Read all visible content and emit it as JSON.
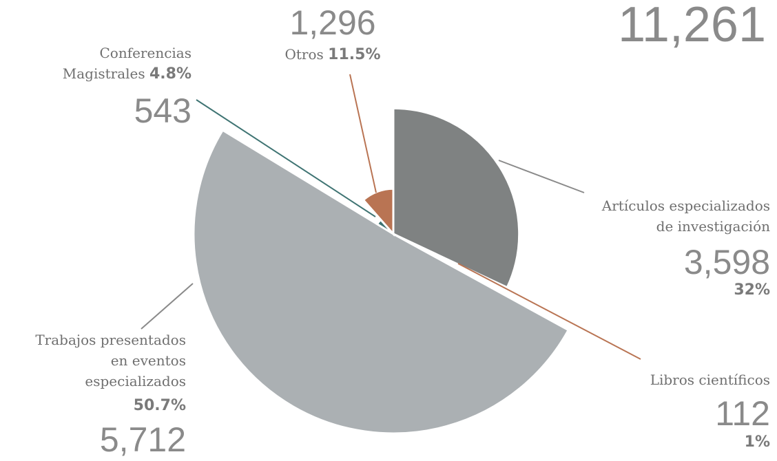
{
  "chart_data": {
    "type": "pie",
    "total": {
      "value": 11261,
      "label": "11,261"
    },
    "categories": [
      "Artículos especializados\nde investigación",
      "Libros científicos",
      "Trabajos presentados\nen eventos\nespecializados",
      "Conferencias\nMagistrales",
      "Otros"
    ],
    "values": [
      32,
      1,
      50.7,
      4.8,
      11.5
    ],
    "value_labels": [
      "32%",
      "1%",
      "50.7%",
      "4.8%",
      "11.5%"
    ],
    "counts": [
      {
        "value": 3598,
        "label": "3,598"
      },
      {
        "value": 112,
        "label": "112"
      },
      {
        "value": 5712,
        "label": "5,712"
      },
      {
        "value": 543,
        "label": "543"
      },
      {
        "value": 1296,
        "label": "1,296"
      }
    ],
    "colors": [
      "#7f8282",
      "#b97453",
      "#abb0b3",
      "#3f7473",
      "#b97453"
    ]
  }
}
